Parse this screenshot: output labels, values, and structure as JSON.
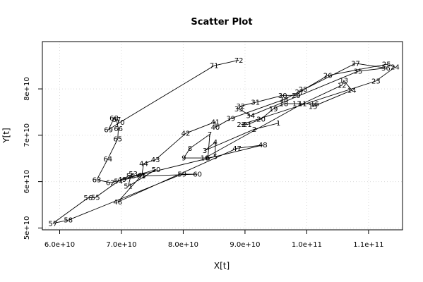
{
  "chart_data": {
    "type": "scatter",
    "title": "Scatter Plot",
    "xlabel": "X[t]",
    "ylabel": "Y[t]",
    "xlim": [
      57200000000,
      115500000000
    ],
    "ylim": [
      49600000000,
      90200000000
    ],
    "x_ticks": [
      {
        "value": 60000000000,
        "label": "6.0e+10"
      },
      {
        "value": 70000000000,
        "label": "7.0e+10"
      },
      {
        "value": 80000000000,
        "label": "8.0e+10"
      },
      {
        "value": 90000000000,
        "label": "9.0e+10"
      },
      {
        "value": 100000000000,
        "label": "1.0e+11"
      },
      {
        "value": 110000000000,
        "label": "1.1e+11"
      }
    ],
    "y_ticks": [
      {
        "value": 50000000000,
        "label": "5e+10"
      },
      {
        "value": 60000000000,
        "label": "6e+10"
      },
      {
        "value": 70000000000,
        "label": "7e+10"
      },
      {
        "value": 80000000000,
        "label": "8e+10"
      }
    ],
    "grid": true,
    "connected": true,
    "points": [
      {
        "label": "1",
        "x": 95400000000,
        "y": 72600000000
      },
      {
        "label": "2",
        "x": 91500000000,
        "y": 71300000000
      },
      {
        "label": "3",
        "x": 83500000000,
        "y": 66700000000
      },
      {
        "label": "4",
        "x": 85200000000,
        "y": 68500000000
      },
      {
        "label": "5",
        "x": 85200000000,
        "y": 65400000000
      },
      {
        "label": "6",
        "x": 84000000000,
        "y": 65100000000
      },
      {
        "label": "7",
        "x": 84300000000,
        "y": 70200000000
      },
      {
        "label": "8",
        "x": 81100000000,
        "y": 67200000000
      },
      {
        "label": "9",
        "x": 80100000000,
        "y": 65100000000
      },
      {
        "label": "10",
        "x": 83500000000,
        "y": 65100000000
      },
      {
        "label": "11",
        "x": 99300000000,
        "y": 76800000000
      },
      {
        "label": "12",
        "x": 105700000000,
        "y": 80800000000
      },
      {
        "label": "13",
        "x": 106000000000,
        "y": 81800000000
      },
      {
        "label": "14",
        "x": 107300000000,
        "y": 79700000000
      },
      {
        "label": "15",
        "x": 101000000000,
        "y": 76200000000
      },
      {
        "label": "16",
        "x": 101300000000,
        "y": 76800000000
      },
      {
        "label": "17",
        "x": 98400000000,
        "y": 76800000000
      },
      {
        "label": "18",
        "x": 96300000000,
        "y": 76800000000
      },
      {
        "label": "19",
        "x": 94600000000,
        "y": 75700000000
      },
      {
        "label": "20",
        "x": 92600000000,
        "y": 73500000000
      },
      {
        "label": "21",
        "x": 90400000000,
        "y": 72300000000
      },
      {
        "label": "22",
        "x": 89400000000,
        "y": 72300000000
      },
      {
        "label": "23",
        "x": 111200000000,
        "y": 81700000000
      },
      {
        "label": "24",
        "x": 114300000000,
        "y": 84700000000
      },
      {
        "label": "25",
        "x": 112900000000,
        "y": 85300000000
      },
      {
        "label": "26",
        "x": 103400000000,
        "y": 82900000000
      },
      {
        "label": "27",
        "x": 98800000000,
        "y": 79300000000
      },
      {
        "label": "28",
        "x": 99400000000,
        "y": 79900000000
      },
      {
        "label": "29",
        "x": 98300000000,
        "y": 78600000000
      },
      {
        "label": "30",
        "x": 96100000000,
        "y": 78600000000
      },
      {
        "label": "31",
        "x": 91700000000,
        "y": 77100000000
      },
      {
        "label": "32",
        "x": 89300000000,
        "y": 76300000000
      },
      {
        "label": "33",
        "x": 89000000000,
        "y": 75700000000
      },
      {
        "label": "34",
        "x": 90900000000,
        "y": 74200000000
      },
      {
        "label": "35",
        "x": 108300000000,
        "y": 83800000000
      },
      {
        "label": "36",
        "x": 112800000000,
        "y": 84500000000
      },
      {
        "label": "37",
        "x": 107900000000,
        "y": 85500000000
      },
      {
        "label": "38",
        "x": 96300000000,
        "y": 77700000000
      },
      {
        "label": "39",
        "x": 87700000000,
        "y": 73600000000
      },
      {
        "label": "40",
        "x": 85200000000,
        "y": 71700000000
      },
      {
        "label": "41",
        "x": 85200000000,
        "y": 72900000000
      },
      {
        "label": "42",
        "x": 80400000000,
        "y": 70400000000
      },
      {
        "label": "43",
        "x": 75500000000,
        "y": 64700000000
      },
      {
        "label": "44",
        "x": 73600000000,
        "y": 63900000000
      },
      {
        "label": "45",
        "x": 73300000000,
        "y": 61400000000
      },
      {
        "label": "46",
        "x": 69400000000,
        "y": 55600000000
      },
      {
        "label": "47",
        "x": 88700000000,
        "y": 67200000000
      },
      {
        "label": "48",
        "x": 92900000000,
        "y": 67900000000
      },
      {
        "label": "49",
        "x": 70100000000,
        "y": 60500000000
      },
      {
        "label": "50",
        "x": 75600000000,
        "y": 62600000000
      },
      {
        "label": "51",
        "x": 71100000000,
        "y": 59000000000
      },
      {
        "label": "52",
        "x": 71500000000,
        "y": 61200000000
      },
      {
        "label": "53",
        "x": 71900000000,
        "y": 61700000000
      },
      {
        "label": "54",
        "x": 69500000000,
        "y": 60100000000
      },
      {
        "label": "55",
        "x": 65800000000,
        "y": 56600000000
      },
      {
        "label": "56",
        "x": 64600000000,
        "y": 56500000000
      },
      {
        "label": "57",
        "x": 58900000000,
        "y": 51000000000
      },
      {
        "label": "58",
        "x": 61400000000,
        "y": 51700000000
      },
      {
        "label": "59",
        "x": 79800000000,
        "y": 61600000000
      },
      {
        "label": "60",
        "x": 82300000000,
        "y": 61600000000
      },
      {
        "label": "61",
        "x": 73200000000,
        "y": 61200000000
      },
      {
        "label": "62",
        "x": 68200000000,
        "y": 59800000000
      },
      {
        "label": "63",
        "x": 66000000000,
        "y": 60400000000
      },
      {
        "label": "64",
        "x": 67800000000,
        "y": 64900000000
      },
      {
        "label": "65",
        "x": 69400000000,
        "y": 69200000000
      },
      {
        "label": "66",
        "x": 69500000000,
        "y": 71400000000
      },
      {
        "label": "67",
        "x": 69200000000,
        "y": 73400000000
      },
      {
        "label": "68",
        "x": 68800000000,
        "y": 73700000000
      },
      {
        "label": "69",
        "x": 67900000000,
        "y": 71200000000
      },
      {
        "label": "70",
        "x": 69800000000,
        "y": 72800000000
      },
      {
        "label": "71",
        "x": 85000000000,
        "y": 85000000000
      },
      {
        "label": "72",
        "x": 89000000000,
        "y": 86200000000
      }
    ]
  }
}
